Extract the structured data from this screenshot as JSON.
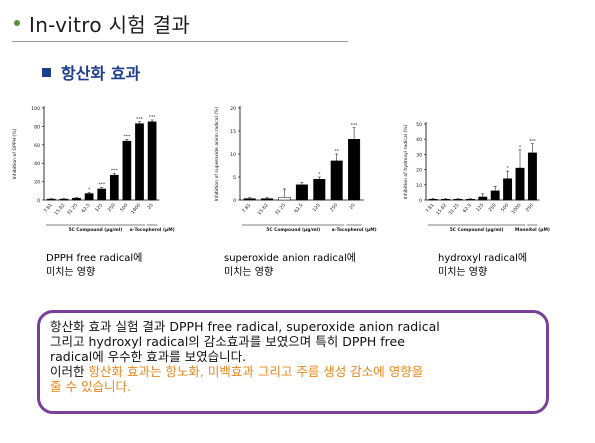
{
  "header": {
    "title": "In-vitro 시험 결과"
  },
  "section": {
    "title": "항산화 효과"
  },
  "charts": [
    {
      "caption": [
        "DPPH free radical에",
        "미치는 영향"
      ],
      "chart_data": {
        "type": "bar",
        "ylabel": "Inhibition of DPPH (%)",
        "ylim": [
          0,
          100
        ],
        "yticks": [
          0,
          20,
          40,
          60,
          80,
          100
        ],
        "categories": [
          "7.81",
          "15.62",
          "31.25",
          "62.5",
          "125",
          "250",
          "500",
          "1000",
          "25"
        ],
        "values": [
          1,
          1,
          2,
          7,
          12,
          27,
          64,
          83,
          85
        ],
        "errors": [
          0.5,
          0.5,
          0.5,
          1,
          1.5,
          2,
          2,
          2,
          2
        ],
        "sig": [
          "",
          "",
          "",
          "*",
          "***",
          "***",
          "***",
          "***",
          "***"
        ],
        "groups": [
          {
            "label": "5C Compound (μg/ml)",
            "from": 0,
            "to": 7
          },
          {
            "label": "α-Tocopherol (μM)",
            "from": 8,
            "to": 8
          }
        ]
      }
    },
    {
      "caption": [
        "superoxide anion radical에",
        "미치는 영향"
      ],
      "chart_data": {
        "type": "bar",
        "ylabel": "Inhibition of superoxide anion radical (%)",
        "ylim": [
          0,
          20
        ],
        "yticks": [
          0,
          5,
          10,
          15,
          20
        ],
        "categories": [
          "7.81",
          "15.62",
          "31.25",
          "62.5",
          "125",
          "250",
          "25"
        ],
        "values": [
          0.3,
          0.3,
          0.6,
          3.3,
          4.5,
          8.5,
          13.2
        ],
        "errors": [
          0.2,
          0.2,
          1.8,
          0.5,
          0.5,
          1.5,
          2.5
        ],
        "sig": [
          "",
          "",
          "",
          "",
          "*",
          "**",
          "***"
        ],
        "groups": [
          {
            "label": "5C Compound (μg/ml)",
            "from": 0,
            "to": 5
          },
          {
            "label": "α-Tocopherol (μM)",
            "from": 6,
            "to": 6
          }
        ]
      }
    },
    {
      "caption": [
        "hydroxyl radical에",
        "미치는 영향"
      ],
      "chart_data": {
        "type": "bar",
        "ylabel": "Inhibition of hydroxyl radical (%)",
        "ylim": [
          0,
          50
        ],
        "yticks": [
          0,
          10,
          20,
          30,
          40,
          50
        ],
        "categories": [
          "7.81",
          "15.62",
          "31.25",
          "62.5",
          "125",
          "250",
          "500",
          "1000",
          "250"
        ],
        "values": [
          0.5,
          0.5,
          0.5,
          0.5,
          2,
          6,
          14,
          21,
          31
        ],
        "errors": [
          0.3,
          0.3,
          0.3,
          0.3,
          2,
          3,
          5,
          12,
          6
        ],
        "sig": [
          "",
          "",
          "",
          "",
          "",
          "",
          "*",
          "*",
          "***"
        ],
        "groups": [
          {
            "label": "5C Compound (μg/ml)",
            "from": 0,
            "to": 7
          },
          {
            "label": "Mannitol (μM)",
            "from": 8,
            "to": 8
          }
        ]
      }
    }
  ],
  "summary": {
    "line1": "항산화 효과 실험 결과 DPPH free radical, superoxide anion radical",
    "line2": "그리고 hydroxyl radical의 감소효과를 보였으며 특히 DPPH free",
    "line3": "radical에 우수한 효과를 보였습니다.",
    "line4_prefix": "이러한 ",
    "line4_highlight": "항산화 효과는 항노화, 미백효과 그리고 주름 생성 감소에 영향을",
    "line5_highlight": "줄 수 있습니다."
  },
  "colors": {
    "accent_navy": "#1d3e8f",
    "box_border": "#7a3f98",
    "highlight_orange": "#e8871e",
    "bullet_green": "#5a8f3c",
    "bar_black": "#000000",
    "bar_white": "#ffffff"
  },
  "icons": {
    "title_bullet": "green-dot-icon",
    "section_marker": "navy-square-icon"
  }
}
